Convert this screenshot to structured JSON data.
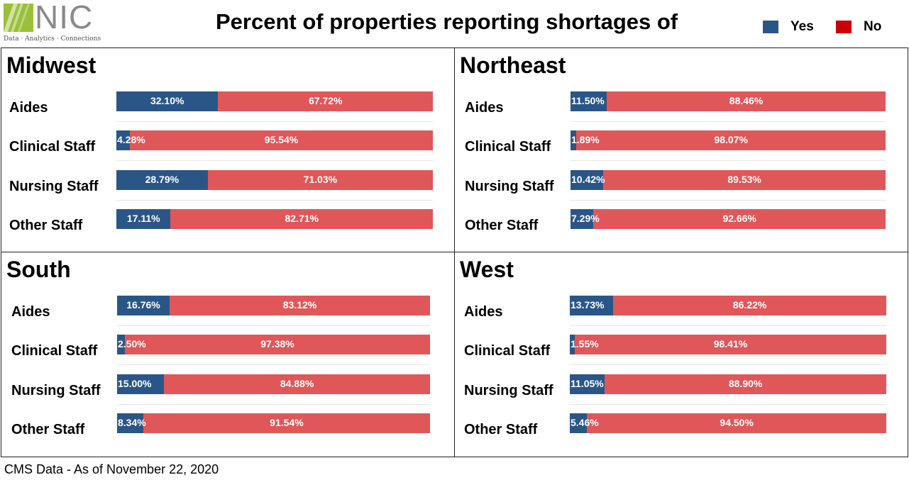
{
  "logo": {
    "word": "NIC",
    "tagline": "Data · Analytics · Connections"
  },
  "title": "Percent of properties reporting shortages of",
  "legend": [
    {
      "label": "Yes",
      "color": "#2a5687"
    },
    {
      "label": "No",
      "color": "#cc0000"
    }
  ],
  "colors": {
    "yes": "#2a5687",
    "no": "#e05759",
    "rule": "#e6e6e6"
  },
  "footer": "CMS Data - As of November 22, 2020",
  "chart_data": {
    "type": "bar",
    "stacked": true,
    "orientation": "horizontal",
    "categories": [
      "Aides",
      "Clinical Staff",
      "Nursing Staff",
      "Other Staff"
    ],
    "panels": [
      {
        "region": "Midwest",
        "series": [
          {
            "name": "Yes",
            "values": [
              32.1,
              4.28,
              28.79,
              17.11
            ]
          },
          {
            "name": "No",
            "values": [
              67.72,
              95.54,
              71.03,
              82.71
            ]
          }
        ],
        "labels": {
          "yes": [
            "32.10%",
            "4.28%",
            "28.79%",
            "17.11%"
          ],
          "no": [
            "67.72%",
            "95.54%",
            "71.03%",
            "82.71%"
          ]
        }
      },
      {
        "region": "Northeast",
        "series": [
          {
            "name": "Yes",
            "values": [
              11.5,
              1.89,
              10.42,
              7.29
            ]
          },
          {
            "name": "No",
            "values": [
              88.46,
              98.07,
              89.53,
              92.66
            ]
          }
        ],
        "labels": {
          "yes": [
            "11.50%",
            "1.89%",
            "10.42%",
            "7.29%"
          ],
          "no": [
            "88.46%",
            "98.07%",
            "89.53%",
            "92.66%"
          ]
        }
      },
      {
        "region": "South",
        "series": [
          {
            "name": "Yes",
            "values": [
              16.76,
              2.5,
              15.0,
              8.34
            ]
          },
          {
            "name": "No",
            "values": [
              83.12,
              97.38,
              84.88,
              91.54
            ]
          }
        ],
        "labels": {
          "yes": [
            "16.76%",
            "2.50%",
            "15.00%",
            "8.34%"
          ],
          "no": [
            "83.12%",
            "97.38%",
            "84.88%",
            "91.54%"
          ]
        }
      },
      {
        "region": "West",
        "series": [
          {
            "name": "Yes",
            "values": [
              13.73,
              1.55,
              11.05,
              5.46
            ]
          },
          {
            "name": "No",
            "values": [
              86.22,
              98.41,
              88.9,
              94.5
            ]
          }
        ],
        "labels": {
          "yes": [
            "13.73%",
            "1.55%",
            "11.05%",
            "5.46%"
          ],
          "no": [
            "86.22%",
            "98.41%",
            "88.90%",
            "94.50%"
          ]
        }
      }
    ]
  }
}
